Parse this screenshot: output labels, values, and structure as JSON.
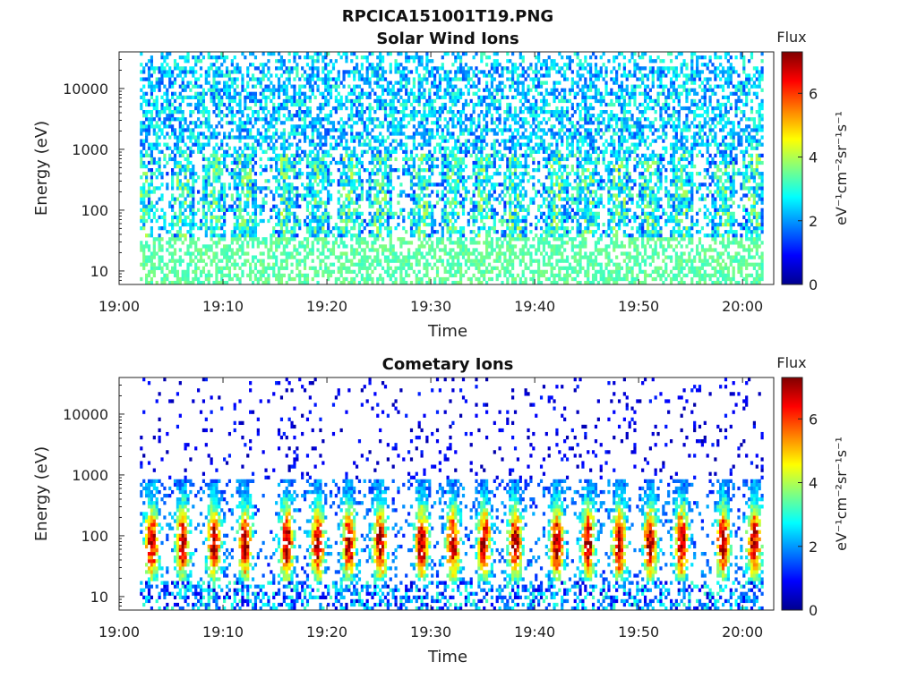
{
  "figure": {
    "filename": "RPCICA151001T19.PNG"
  },
  "colors": {
    "jet": [
      "#00008f",
      "#0000ff",
      "#0080ff",
      "#00ffff",
      "#80ff80",
      "#ffff00",
      "#ff8000",
      "#ff0000",
      "#800000"
    ]
  },
  "chart_data": [
    {
      "type": "heatmap",
      "title": "Solar Wind Ions",
      "xlabel": "Time",
      "ylabel": "Energy (eV)",
      "y_scale": "log",
      "xlim": [
        "19:00",
        "20:03"
      ],
      "ylim": [
        6,
        40000
      ],
      "x_ticks": [
        "19:00",
        "19:10",
        "19:20",
        "19:30",
        "19:40",
        "19:50",
        "20:00"
      ],
      "y_ticks": [
        10,
        100,
        1000,
        10000
      ],
      "y_tick_labels": [
        "10",
        "100",
        "1000",
        "10000"
      ],
      "data_start": "19:02",
      "data_end": "20:02",
      "peak_times": [
        "19:02",
        "19:06",
        "19:09",
        "19:12",
        "19:16",
        "19:19",
        "19:22",
        "19:25",
        "19:29",
        "19:32",
        "19:35",
        "19:38",
        "19:42",
        "19:45",
        "19:48",
        "19:51",
        "19:54",
        "19:58",
        "20:01"
      ],
      "colorbar": {
        "title": "Flux",
        "label": "eV⁻¹cm⁻²sr⁻¹s⁻¹",
        "range": [
          0,
          7.3
        ],
        "ticks": [
          "0",
          "2",
          "4",
          "6"
        ]
      }
    },
    {
      "type": "heatmap",
      "title": "Cometary Ions",
      "xlabel": "Time",
      "ylabel": "Energy (eV)",
      "y_scale": "log",
      "xlim": [
        "19:00",
        "20:03"
      ],
      "ylim": [
        6,
        40000
      ],
      "x_ticks": [
        "19:00",
        "19:10",
        "19:20",
        "19:30",
        "19:40",
        "19:50",
        "20:00"
      ],
      "y_ticks": [
        10,
        100,
        1000,
        10000
      ],
      "y_tick_labels": [
        "10",
        "100",
        "1000",
        "10000"
      ],
      "data_start": "19:02",
      "data_end": "20:02",
      "peak_times": [
        "19:03",
        "19:06",
        "19:09",
        "19:12",
        "19:16",
        "19:19",
        "19:22",
        "19:25",
        "19:29",
        "19:32",
        "19:35",
        "19:38",
        "19:42",
        "19:45",
        "19:48",
        "19:51",
        "19:54",
        "19:58",
        "20:01"
      ],
      "peak_energy_eV": 70,
      "peak_flux": 6,
      "colorbar": {
        "title": "Flux",
        "label": "eV⁻¹cm⁻²sr⁻¹s⁻¹",
        "range": [
          0,
          7.3
        ],
        "ticks": [
          "0",
          "2",
          "4",
          "6"
        ]
      }
    }
  ]
}
